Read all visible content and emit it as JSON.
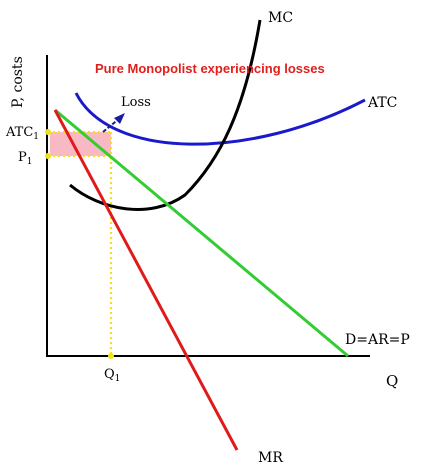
{
  "diagram": {
    "title": "Pure Monopolist experiencing losses",
    "y_axis_label": "P, costs",
    "x_axis_label": "Q",
    "curves": {
      "mc": "MC",
      "atc": "ATC",
      "mr": "MR",
      "demand": "D=AR=P"
    },
    "annotations": {
      "loss": "Loss"
    },
    "ticks": {
      "atc1_main": "ATC",
      "atc1_sub": "1",
      "p1_main": "P",
      "p1_sub": "1",
      "q1_main": "Q",
      "q1_sub": "1"
    },
    "colors": {
      "title": "#e0201c",
      "mc": "#000000",
      "atc": "#1a1acc",
      "mr": "#e01a1a",
      "demand": "#33cc33",
      "loss_area": "#f8b9c4",
      "guide_lines": "#f2e21a",
      "loss_arrow": "#1a1aa0",
      "axes": "#000000"
    }
  }
}
